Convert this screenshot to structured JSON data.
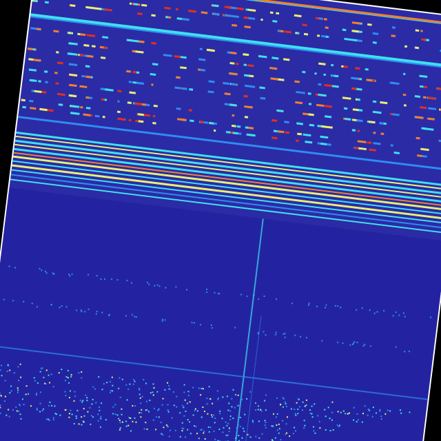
{
  "image": {
    "kind": "rotated spectrogram-like heatmap",
    "colors": {
      "background": "#000000",
      "border": "#ffffff",
      "base": "#2b2ba6",
      "dark": "#1e1ea0",
      "cyan": "#3fe0f0",
      "light_blue": "#2f8cf0",
      "yellow": "#e8f070",
      "orange": "#f08030",
      "red": "#e03020"
    }
  }
}
